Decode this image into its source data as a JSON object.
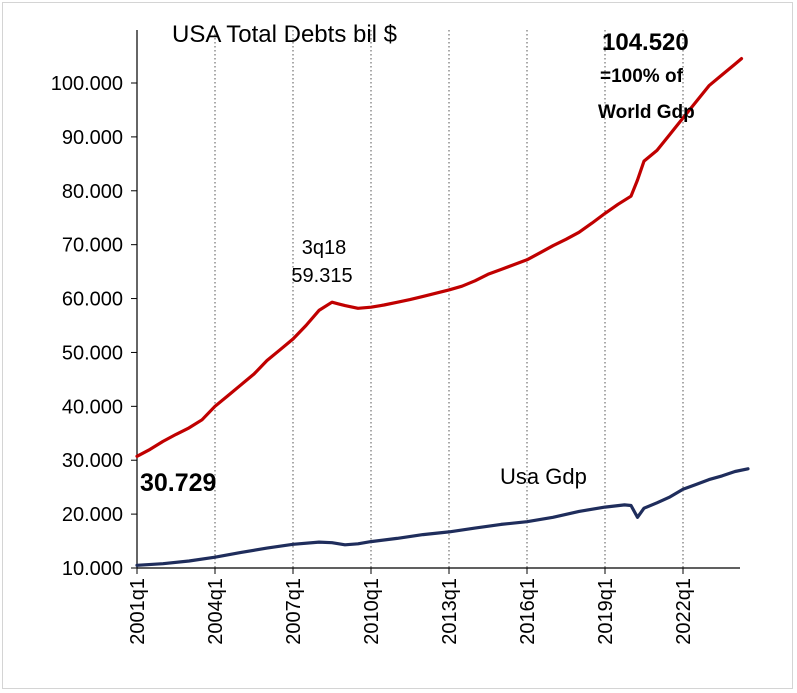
{
  "chart_data": {
    "type": "line",
    "title": "USA  Total Debts  bil $",
    "ylim": [
      10000,
      105000
    ],
    "yticks": [
      "10.000",
      "20.000",
      "30.000",
      "40.000",
      "50.000",
      "60.000",
      "70.000",
      "80.000",
      "90.000",
      "100.000"
    ],
    "ytick_values": [
      10000,
      20000,
      30000,
      40000,
      50000,
      60000,
      70000,
      80000,
      90000,
      100000
    ],
    "xticks": [
      "2001q1",
      "2004q1",
      "2007q1",
      "2010q1",
      "2013q1",
      "2016q1",
      "2019q1",
      "2022q1"
    ],
    "xtick_positions": [
      2001,
      2004,
      2007,
      2010,
      2013,
      2016,
      2019,
      2022
    ],
    "xlim": [
      2001,
      2024.5
    ],
    "grid": "vertical dotted",
    "series": [
      {
        "key": "debt",
        "color": "#c00000",
        "x": [
          2001.0,
          2001.5,
          2002.0,
          2002.5,
          2003.0,
          2003.5,
          2004.0,
          2004.5,
          2005.0,
          2005.5,
          2006.0,
          2006.5,
          2007.0,
          2007.5,
          2008.0,
          2008.5,
          2008.75,
          2009.0,
          2009.5,
          2010.0,
          2010.5,
          2011.0,
          2011.5,
          2012.0,
          2012.5,
          2013.0,
          2013.5,
          2014.0,
          2014.5,
          2015.0,
          2015.5,
          2016.0,
          2016.5,
          2017.0,
          2017.5,
          2018.0,
          2018.5,
          2019.0,
          2019.5,
          2020.0,
          2020.25,
          2020.5,
          2021.0,
          2021.5,
          2022.0,
          2022.5,
          2023.0,
          2023.5,
          2024.0,
          2024.25
        ],
        "values": [
          30729,
          32000,
          33500,
          34800,
          36000,
          37500,
          40000,
          42000,
          44000,
          46000,
          48500,
          50500,
          52500,
          55000,
          57800,
          59315,
          59000,
          58700,
          58200,
          58400,
          58800,
          59300,
          59800,
          60400,
          61000,
          61600,
          62300,
          63300,
          64500,
          65400,
          66300,
          67200,
          68500,
          69800,
          71000,
          72300,
          74000,
          75800,
          77500,
          79000,
          82000,
          85500,
          87500,
          90500,
          93500,
          96500,
          99500,
          101500,
          103500,
          104520
        ]
      },
      {
        "key": "gdp",
        "name": "Usa Gdp",
        "color": "#1f2d5c",
        "x": [
          2001.0,
          2002.0,
          2003.0,
          2004.0,
          2005.0,
          2006.0,
          2007.0,
          2008.0,
          2008.5,
          2009.0,
          2009.5,
          2010.0,
          2011.0,
          2012.0,
          2013.0,
          2014.0,
          2015.0,
          2016.0,
          2017.0,
          2018.0,
          2019.0,
          2019.75,
          2020.0,
          2020.25,
          2020.5,
          2021.0,
          2021.5,
          2022.0,
          2022.5,
          2023.0,
          2023.5,
          2024.0,
          2024.5
        ],
        "values": [
          10500,
          10800,
          11300,
          12000,
          12900,
          13700,
          14400,
          14800,
          14700,
          14300,
          14500,
          14900,
          15500,
          16200,
          16700,
          17400,
          18100,
          18600,
          19400,
          20500,
          21300,
          21700,
          21600,
          19400,
          21100,
          22100,
          23200,
          24600,
          25500,
          26400,
          27100,
          27900,
          28400
        ]
      }
    ],
    "annotations": {
      "start_value": "30.729",
      "peak_label": "3q18",
      "peak_value": "59.315",
      "end_value": "104.520",
      "end_note_1": "=100% of",
      "end_note_2": "World Gdp",
      "gdp_label": "Usa Gdp"
    }
  }
}
